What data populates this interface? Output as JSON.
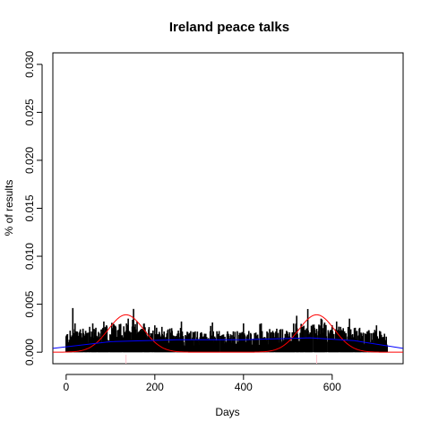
{
  "chart_data": {
    "type": "bar",
    "title": "Ireland peace talks",
    "xlabel": "Days",
    "ylabel": "% of results",
    "xlim": [
      -30,
      760
    ],
    "ylim": [
      -0.0012,
      0.0312
    ],
    "x_ticks": [
      0,
      200,
      400,
      600
    ],
    "x_tick_labels": [
      "0",
      "200",
      "400",
      "600"
    ],
    "y_ticks": [
      0.0,
      0.005,
      0.01,
      0.015,
      0.02,
      0.025,
      0.03
    ],
    "y_tick_labels": [
      "0.000",
      "0.005",
      "0.010",
      "0.015",
      "0.020",
      "0.025",
      "0.030"
    ],
    "grid": false,
    "colors": {
      "bars": "#000000",
      "peak_curves": "#ff0000",
      "trend_line": "#0000ff",
      "peak_markers": "#ffc0cb"
    },
    "peak_markers": [
      135,
      565
    ],
    "series": [
      {
        "kind": "bars",
        "x_range": [
          0,
          725
        ],
        "typical_range": [
          0.0005,
          0.0022
        ],
        "max_value": 0.0047,
        "points": [
          [
            15,
            0.0046
          ],
          [
            20,
            0.003
          ],
          [
            60,
            0.003
          ],
          [
            85,
            0.0032
          ],
          [
            140,
            0.0035
          ],
          [
            200,
            0.0028
          ],
          [
            260,
            0.0032
          ],
          [
            330,
            0.0031
          ],
          [
            400,
            0.003
          ],
          [
            440,
            0.003
          ],
          [
            520,
            0.0038
          ],
          [
            545,
            0.0045
          ],
          [
            575,
            0.0035
          ],
          [
            610,
            0.0032
          ],
          [
            700,
            0.0028
          ]
        ]
      },
      {
        "kind": "peak_curve",
        "peaks": [
          {
            "center": 135,
            "height": 0.0039,
            "sd": 40
          },
          {
            "center": 565,
            "height": 0.0039,
            "sd": 40
          }
        ]
      },
      {
        "kind": "trend_line",
        "points": [
          [
            -30,
            0.0004
          ],
          [
            100,
            0.0011
          ],
          [
            250,
            0.0013
          ],
          [
            400,
            0.0013
          ],
          [
            550,
            0.0015
          ],
          [
            650,
            0.0012
          ],
          [
            760,
            0.0004
          ]
        ]
      }
    ]
  }
}
